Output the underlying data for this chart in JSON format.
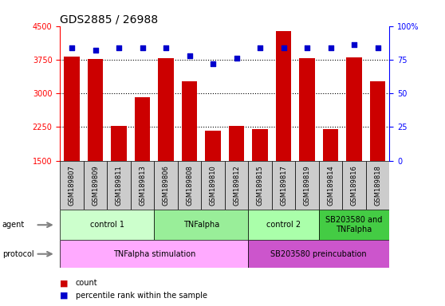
{
  "title": "GDS2885 / 26988",
  "samples": [
    "GSM189807",
    "GSM189809",
    "GSM189811",
    "GSM189813",
    "GSM189806",
    "GSM189808",
    "GSM189810",
    "GSM189812",
    "GSM189815",
    "GSM189817",
    "GSM189819",
    "GSM189814",
    "GSM189816",
    "GSM189818"
  ],
  "counts": [
    3820,
    3760,
    2280,
    2920,
    3790,
    3260,
    2165,
    2280,
    2210,
    4380,
    3790,
    2210,
    3810,
    3270
  ],
  "percentile_ranks": [
    84,
    82,
    84,
    84,
    84,
    78,
    72,
    76,
    84,
    84,
    84,
    84,
    86,
    84
  ],
  "ylim_left": [
    1500,
    4500
  ],
  "ylim_right": [
    0,
    100
  ],
  "yticks_left": [
    1500,
    2250,
    3000,
    3750,
    4500
  ],
  "yticks_right": [
    0,
    25,
    50,
    75,
    100
  ],
  "bar_color": "#cc0000",
  "dot_color": "#0000cc",
  "background_color": "#ffffff",
  "sample_box_color": "#cccccc",
  "agent_groups": [
    {
      "label": "control 1",
      "start": 0,
      "end": 4,
      "color": "#ccffcc"
    },
    {
      "label": "TNFalpha",
      "start": 4,
      "end": 8,
      "color": "#99ee99"
    },
    {
      "label": "control 2",
      "start": 8,
      "end": 11,
      "color": "#aaffaa"
    },
    {
      "label": "SB203580 and\nTNFalpha",
      "start": 11,
      "end": 14,
      "color": "#44cc44"
    }
  ],
  "protocol_groups": [
    {
      "label": "TNFalpha stimulation",
      "start": 0,
      "end": 8,
      "color": "#ffaaff"
    },
    {
      "label": "SB203580 preincubation",
      "start": 8,
      "end": 14,
      "color": "#cc55cc"
    }
  ],
  "legend_count_color": "#cc0000",
  "legend_pct_color": "#0000cc",
  "title_fontsize": 10,
  "tick_fontsize": 7,
  "sample_fontsize": 6,
  "annotation_fontsize": 7,
  "legend_fontsize": 7
}
